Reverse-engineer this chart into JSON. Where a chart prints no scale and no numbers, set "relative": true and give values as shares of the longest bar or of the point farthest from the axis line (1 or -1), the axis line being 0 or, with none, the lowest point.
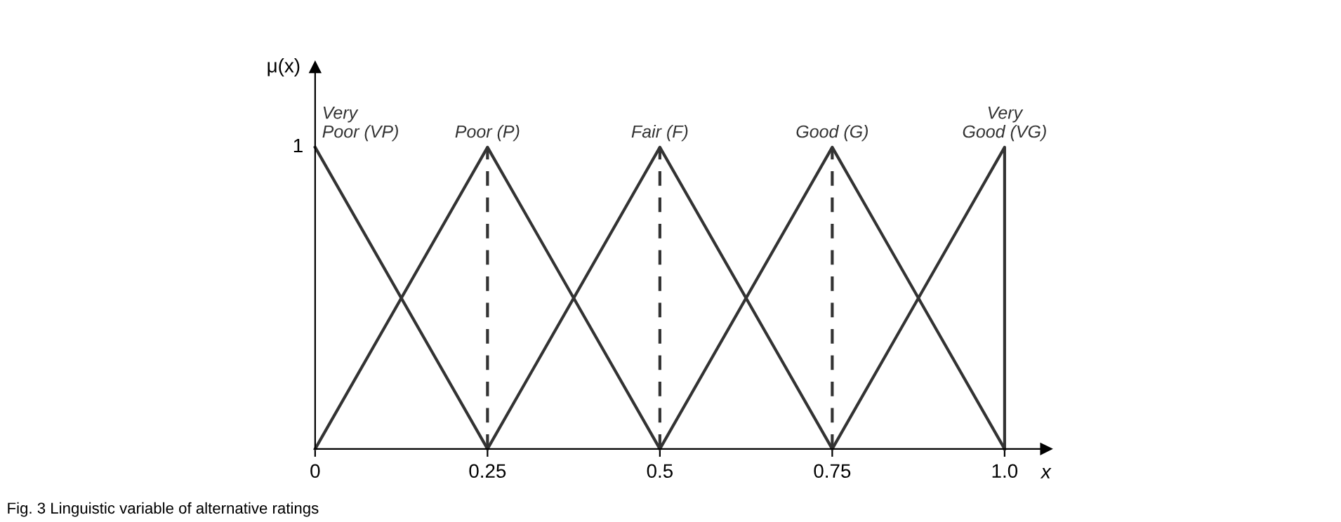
{
  "chart_data": {
    "type": "line",
    "xlabel": "x",
    "ylabel": "μ(x)",
    "annotations": [
      "Fig. 3 Linguistic variable of alternative ratings",
      {
        "text": "1",
        "x": 0,
        "y": 1
      }
    ],
    "series": [
      {
        "name": "Very\nPoor (VP)",
        "color": "#333333",
        "x": [
          0,
          0.25
        ],
        "values": [
          1,
          0
        ]
      },
      {
        "name": "Poor (P)",
        "color": "#333333",
        "x": [
          0,
          0.25,
          0.5
        ],
        "values": [
          0,
          1,
          0
        ]
      },
      {
        "name": "Fair (F)",
        "color": "#333333",
        "x": [
          0.25,
          0.5,
          0.75
        ],
        "values": [
          0,
          1,
          0
        ]
      },
      {
        "name": "Good (G)",
        "color": "#333333",
        "x": [
          0.5,
          0.75,
          1.0
        ],
        "values": [
          0,
          1,
          0
        ]
      },
      {
        "name": "Very\nGood (VG)",
        "color": "#333333",
        "x": [
          0.75,
          1.0,
          1.0
        ],
        "values": [
          0,
          1,
          0
        ]
      }
    ],
    "ref_lines": [
      {
        "axis": "x",
        "value": 0.25,
        "color": "#333333",
        "line_style": "dashed"
      },
      {
        "axis": "x",
        "value": 0.5,
        "color": "#333333",
        "line_style": "dashed"
      },
      {
        "axis": "x",
        "value": 0.75,
        "color": "#333333",
        "line_style": "dashed"
      }
    ],
    "xlim": [
      0,
      1.06
    ],
    "xticks": [
      0,
      0.25,
      0.5,
      0.75,
      {
        "value": 1.0,
        "label": "1.0"
      }
    ],
    "relative": true,
    "marker": "none",
    "line_style": "solid",
    "grid": false,
    "legend": false
  }
}
